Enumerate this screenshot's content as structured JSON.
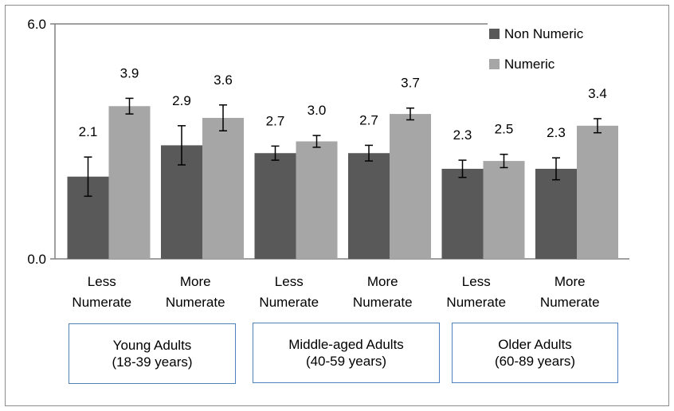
{
  "chart_data": {
    "type": "bar",
    "categories": [
      [
        "Less",
        "Numerate"
      ],
      [
        "More",
        "Numerate"
      ],
      [
        "Less",
        "Numerate"
      ],
      [
        "More",
        "Numerate"
      ],
      [
        "Less",
        "Numerate"
      ],
      [
        "More",
        "Numerate"
      ]
    ],
    "series": [
      {
        "name": "Non Numeric",
        "color": "#595959",
        "values": [
          2.1,
          2.9,
          2.7,
          2.7,
          2.3,
          2.3
        ],
        "labels": [
          "2.1",
          "2.9",
          "2.7",
          "2.7",
          "2.3",
          "2.3"
        ],
        "error": [
          0.5,
          0.5,
          0.18,
          0.2,
          0.22,
          0.28
        ]
      },
      {
        "name": "Numeric",
        "color": "#a6a6a6",
        "values": [
          3.9,
          3.6,
          3.0,
          3.7,
          2.5,
          3.4
        ],
        "labels": [
          "3.9",
          "3.6",
          "3.0",
          "3.7",
          "2.5",
          "3.4"
        ],
        "error": [
          0.2,
          0.33,
          0.15,
          0.15,
          0.17,
          0.18
        ]
      }
    ],
    "ylim": [
      0,
      6
    ],
    "yticks": [
      "0.0",
      "6.0"
    ],
    "legend_position": "top-right",
    "grid": false,
    "groups": [
      {
        "line1": "Young Adults",
        "line2": "(18-39 years)"
      },
      {
        "line1": "Middle-aged Adults",
        "line2": "(40-59 years)"
      },
      {
        "line1": "Older Adults",
        "line2": "(60-89 years)"
      }
    ]
  }
}
